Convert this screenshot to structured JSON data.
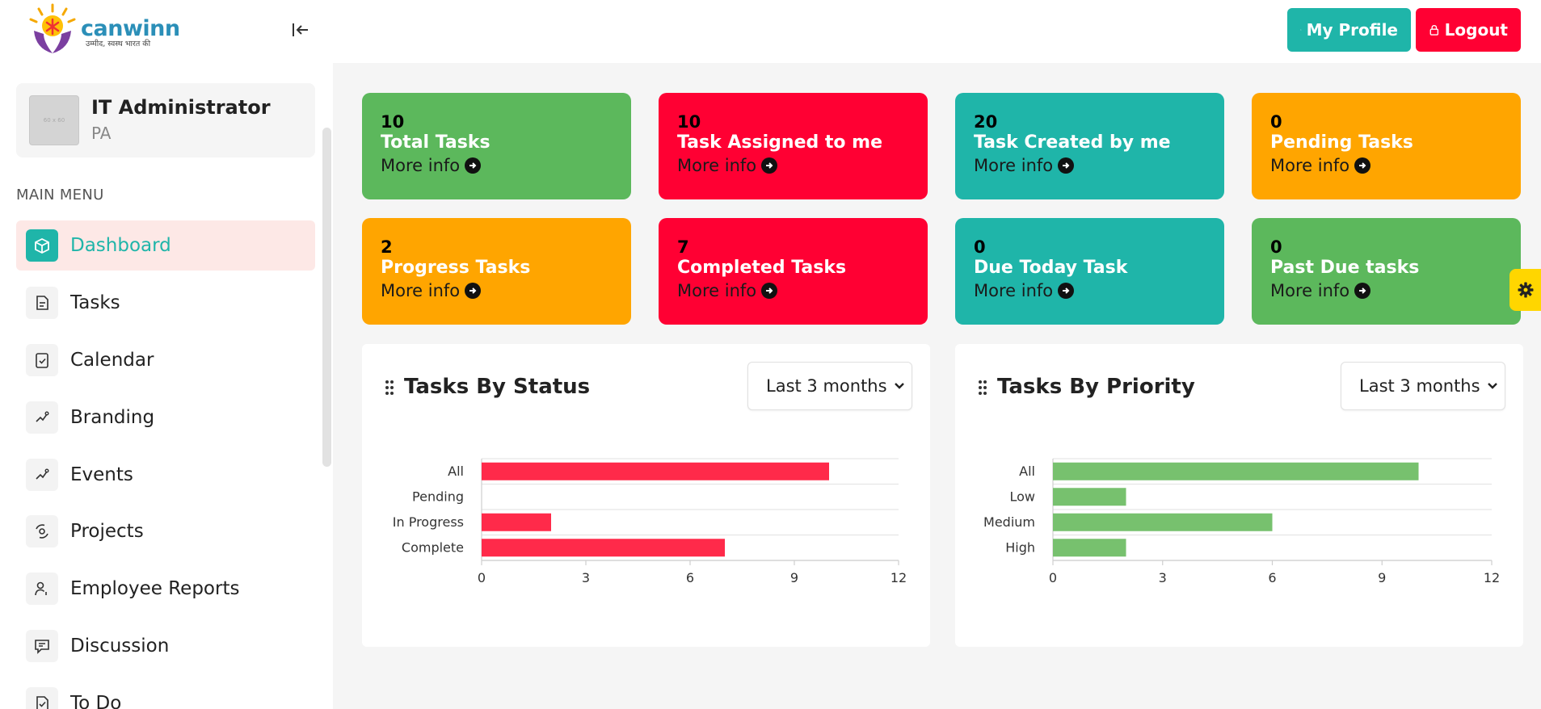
{
  "header": {
    "brand": "canwinn",
    "tagline": "उम्मीद, स्वस्थ भारत की",
    "profile_label": "My Profile",
    "logout_label": "Logout"
  },
  "sidebar": {
    "user_name": "IT Administrator",
    "user_role": "PA",
    "avatar_text": "60 x 60",
    "menu_heading": "MAIN MENU",
    "items": [
      {
        "label": "Dashboard",
        "icon": "dashboard-icon",
        "active": true
      },
      {
        "label": "Tasks",
        "icon": "tasks-icon"
      },
      {
        "label": "Calendar",
        "icon": "calendar-icon"
      },
      {
        "label": "Branding",
        "icon": "branding-icon"
      },
      {
        "label": "Events",
        "icon": "events-icon"
      },
      {
        "label": "Projects",
        "icon": "projects-icon"
      },
      {
        "label": "Employee Reports",
        "icon": "employee-reports-icon"
      },
      {
        "label": "Discussion",
        "icon": "discussion-icon"
      },
      {
        "label": "To Do",
        "icon": "todo-icon"
      }
    ]
  },
  "cards": [
    {
      "value": "10",
      "title": "Total Tasks",
      "more": "More info",
      "color": "#5cb85c"
    },
    {
      "value": "10",
      "title": "Task Assigned to me",
      "more": "More info",
      "color": "#ff0033"
    },
    {
      "value": "20",
      "title": "Task Created by me",
      "more": "More info",
      "color": "#1fb5a9"
    },
    {
      "value": "0",
      "title": "Pending Tasks",
      "more": "More info",
      "color": "#ffa500"
    },
    {
      "value": "2",
      "title": "Progress Tasks",
      "more": "More info",
      "color": "#ffa500"
    },
    {
      "value": "7",
      "title": "Completed Tasks",
      "more": "More info",
      "color": "#ff0033"
    },
    {
      "value": "0",
      "title": "Due Today Task",
      "more": "More info",
      "color": "#1fb5a9"
    },
    {
      "value": "0",
      "title": "Past Due tasks",
      "more": "More info",
      "color": "#5cb85c"
    }
  ],
  "panels": {
    "status": {
      "title": "Tasks By Status",
      "range": "Last 3 months"
    },
    "priority": {
      "title": "Tasks By Priority",
      "range": "Last 3 months"
    }
  },
  "chart_data": [
    {
      "type": "bar",
      "orientation": "horizontal",
      "title": "Tasks By Status",
      "categories": [
        "All",
        "Pending",
        "In Progress",
        "Complete"
      ],
      "values": [
        10,
        0,
        2,
        7
      ],
      "xlim": [
        0,
        12
      ],
      "xticks": [
        0,
        3,
        6,
        9,
        12
      ],
      "color": "#ff2a4a",
      "grid": true
    },
    {
      "type": "bar",
      "orientation": "horizontal",
      "title": "Tasks By Priority",
      "categories": [
        "All",
        "Low",
        "Medium",
        "High"
      ],
      "values": [
        10,
        2,
        6,
        2
      ],
      "xlim": [
        0,
        12
      ],
      "xticks": [
        0,
        3,
        6,
        9,
        12
      ],
      "color": "#77c16e",
      "grid": true
    }
  ]
}
